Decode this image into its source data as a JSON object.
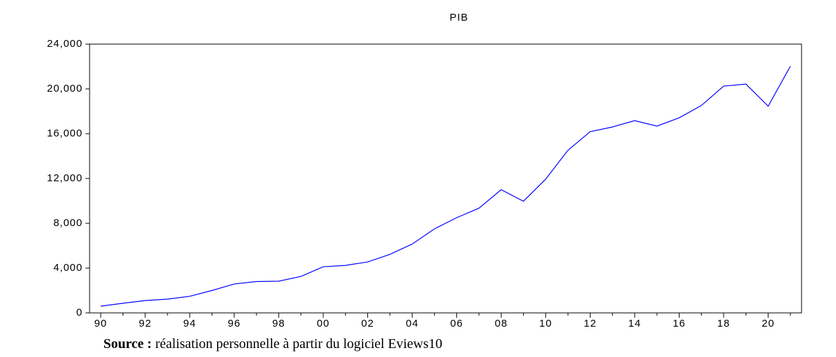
{
  "chart_data": {
    "type": "line",
    "title": "PIB",
    "categories": [
      "90",
      null,
      "92",
      null,
      "94",
      null,
      "96",
      null,
      "98",
      null,
      "00",
      null,
      "02",
      null,
      "04",
      null,
      "06",
      null,
      "08",
      null,
      "10",
      null,
      "12",
      null,
      "14",
      null,
      "16",
      null,
      "18",
      null,
      "20",
      null
    ],
    "series": [
      {
        "name": "PIB",
        "color": "#0000ff",
        "values": [
          600,
          860,
          1100,
          1230,
          1480,
          2000,
          2580,
          2800,
          2830,
          3260,
          4120,
          4240,
          4550,
          5230,
          6150,
          7500,
          8500,
          9350,
          11000,
          9970,
          11940,
          14520,
          16180,
          16600,
          17170,
          16680,
          17420,
          18520,
          20250,
          20430,
          18460,
          22030
        ]
      }
    ],
    "ylim": [
      0,
      24000
    ],
    "yticks": [
      0,
      {
        "value": 4000,
        "label": "4,000"
      },
      {
        "value": 8000,
        "label": "8,000"
      },
      {
        "value": 12000,
        "label": "12,000"
      },
      {
        "value": 16000,
        "label": "16,000"
      },
      {
        "value": 20000,
        "label": "20,000"
      },
      {
        "value": 24000,
        "label": "24,000"
      }
    ],
    "grid": false,
    "source": {
      "label": "Source :",
      "text": "réalisation personnelle à partir du logiciel Eviews10"
    }
  }
}
